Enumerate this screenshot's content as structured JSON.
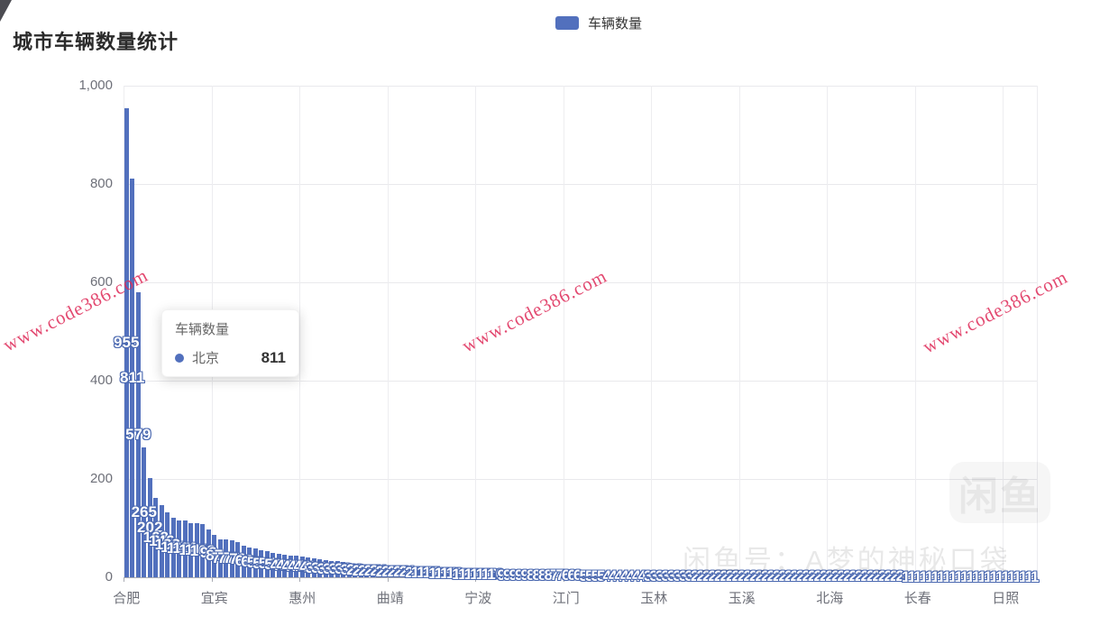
{
  "header": {
    "title": "城市车辆数量统计"
  },
  "legend": {
    "label": "车辆数量",
    "color": "#5270bd"
  },
  "tooltip": {
    "title": "车辆数量",
    "city": "北京",
    "value": "811"
  },
  "y_axis": {
    "ticks": [
      "1,000",
      "800",
      "600",
      "400",
      "200",
      "0"
    ]
  },
  "chart_data": {
    "type": "bar",
    "title": "城市车辆数量统计",
    "series_name": "车辆数量",
    "ylabel": "",
    "xlabel": "",
    "ylim": [
      0,
      1000
    ],
    "grid": true,
    "legend_position": "top-center",
    "bar_color": "#5270bd",
    "x_label_every": 15,
    "x_labels": [
      "合肥",
      "宜宾",
      "惠州",
      "曲靖",
      "宁波",
      "江门",
      "玉林",
      "玉溪",
      "北海",
      "长春",
      "日照"
    ],
    "values": [
      955,
      811,
      579,
      265,
      202,
      162,
      146,
      132,
      121,
      116,
      116,
      111,
      111,
      108,
      98,
      87,
      77,
      77,
      76,
      72,
      65,
      61,
      58,
      55,
      54,
      50,
      48,
      46,
      44,
      44,
      43,
      40,
      38,
      36,
      34,
      33,
      33,
      32,
      30,
      28,
      27,
      26,
      25,
      24,
      23,
      22,
      22,
      22,
      21,
      20,
      19,
      18,
      17,
      16,
      15,
      14,
      13,
      12,
      11,
      11,
      11,
      11,
      10,
      10,
      9,
      9,
      9,
      9,
      9,
      8,
      8,
      8,
      8,
      7,
      7,
      6,
      6,
      6,
      5,
      5,
      5,
      5,
      4,
      4,
      4,
      4,
      4,
      4,
      4,
      3,
      3,
      3,
      3,
      3,
      3,
      3,
      3,
      2,
      2,
      2,
      2,
      2,
      2,
      2,
      2,
      2,
      2,
      2,
      2,
      2,
      2,
      2,
      2,
      2,
      2,
      2,
      2,
      2,
      2,
      2,
      2,
      2,
      2,
      2,
      2,
      2,
      2,
      2,
      2,
      2,
      2,
      2,
      2,
      1,
      1,
      1,
      1,
      1,
      1,
      1,
      1,
      1,
      1,
      1,
      1,
      1,
      1,
      1,
      1,
      1,
      1,
      1,
      1,
      1,
      1,
      1
    ],
    "highlighted_bar": {
      "index": 1,
      "city": "北京",
      "value": 811
    }
  },
  "watermarks": {
    "site": "www.code386.com",
    "site_color": "#de2a58",
    "logo": "闲鱼",
    "account": "闲鱼号：A梦的神秘口袋"
  }
}
